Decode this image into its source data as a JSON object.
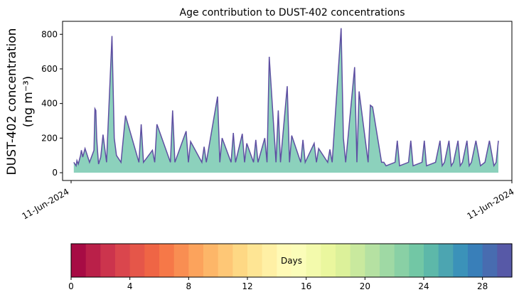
{
  "chart_data": {
    "type": "area",
    "title": "Age contribution to DUST-402 concentrations",
    "ylabel_line1": "DUST-402 concentration",
    "ylabel_line2": "(ng m⁻³)",
    "xlabel": "",
    "x_tick_labels": [
      "11-Jun-2024",
      "11-Jun-2024"
    ],
    "ylim": [
      -45,
      875
    ],
    "yticks": [
      0,
      200,
      400,
      600,
      800
    ],
    "grid": false,
    "line_color": "#5e4fa2",
    "colormap": [
      "#9e0142",
      "#d53e4f",
      "#f46d43",
      "#fdae61",
      "#fee08b",
      "#ffffbf",
      "#e6f598",
      "#abdda4",
      "#66c2a5",
      "#3288bd",
      "#5e4fa2"
    ],
    "colorbar": {
      "label": "Days",
      "range": [
        0,
        30
      ],
      "ticks": [
        0,
        4,
        8,
        12,
        16,
        20,
        24,
        28
      ],
      "n_bins": 30
    },
    "series_total": {
      "x_fraction": [
        0.025,
        0.03,
        0.032,
        0.035,
        0.04,
        0.042,
        0.045,
        0.05,
        0.055,
        0.06,
        0.07,
        0.072,
        0.074,
        0.076,
        0.078,
        0.08,
        0.085,
        0.09,
        0.095,
        0.098,
        0.1,
        0.11,
        0.115,
        0.12,
        0.13,
        0.14,
        0.17,
        0.175,
        0.18,
        0.2,
        0.205,
        0.21,
        0.24,
        0.245,
        0.25,
        0.275,
        0.28,
        0.285,
        0.31,
        0.315,
        0.32,
        0.345,
        0.35,
        0.355,
        0.375,
        0.38,
        0.385,
        0.4,
        0.405,
        0.41,
        0.425,
        0.43,
        0.435,
        0.45,
        0.455,
        0.46,
        0.475,
        0.48,
        0.485,
        0.5,
        0.505,
        0.51,
        0.53,
        0.535,
        0.54,
        0.56,
        0.565,
        0.57,
        0.59,
        0.595,
        0.6,
        0.62,
        0.625,
        0.63,
        0.65,
        0.655,
        0.66,
        0.68,
        0.685,
        0.69,
        0.71,
        0.715,
        0.72,
        0.74,
        0.745,
        0.75,
        0.77,
        0.775,
        0.78,
        0.8,
        0.805,
        0.81,
        0.83,
        0.84,
        0.845,
        0.85,
        0.86,
        0.865,
        0.87,
        0.88,
        0.885,
        0.89,
        0.9,
        0.905,
        0.91,
        0.92,
        0.93,
        0.94,
        0.95,
        0.96,
        0.965,
        0.97
      ],
      "values": [
        60,
        40,
        70,
        50,
        100,
        130,
        90,
        140,
        100,
        60,
        130,
        370,
        360,
        200,
        120,
        50,
        90,
        220,
        120,
        60,
        190,
        790,
        200,
        100,
        60,
        330,
        60,
        280,
        60,
        130,
        60,
        280,
        60,
        360,
        60,
        240,
        60,
        180,
        60,
        150,
        60,
        440,
        60,
        200,
        60,
        230,
        60,
        225,
        60,
        170,
        60,
        190,
        60,
        200,
        60,
        670,
        60,
        360,
        60,
        500,
        60,
        215,
        60,
        190,
        60,
        170,
        60,
        140,
        60,
        135,
        60,
        835,
        200,
        60,
        610,
        60,
        470,
        60,
        390,
        380,
        60,
        60,
        40,
        60,
        185,
        40,
        60,
        185,
        40,
        60,
        185,
        40,
        60,
        185,
        40,
        60,
        185,
        40,
        60,
        185,
        40,
        60,
        185,
        40,
        60,
        185,
        40,
        60,
        185,
        40,
        60,
        185
      ]
    }
  }
}
